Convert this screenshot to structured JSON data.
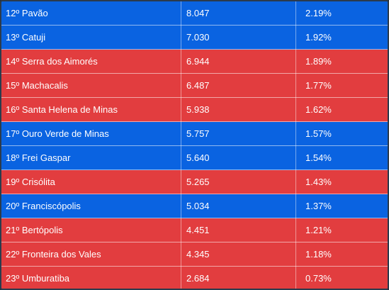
{
  "colors": {
    "blue": "#0a63e1",
    "red": "#e23d3f"
  },
  "rows": [
    {
      "rank": "12º",
      "name": "Pavão",
      "population": "8.047",
      "percent": "2.19%",
      "color": "blue"
    },
    {
      "rank": "13º",
      "name": "Catuji",
      "population": "7.030",
      "percent": "1.92%",
      "color": "blue"
    },
    {
      "rank": "14º",
      "name": "Serra dos Aimorés",
      "population": "6.944",
      "percent": "1.89%",
      "color": "red"
    },
    {
      "rank": "15º",
      "name": "Machacalis",
      "population": "6.487",
      "percent": "1.77%",
      "color": "red"
    },
    {
      "rank": "16º",
      "name": "Santa Helena de Minas",
      "population": "5.938",
      "percent": "1.62%",
      "color": "red"
    },
    {
      "rank": "17º",
      "name": "Ouro Verde de Minas",
      "population": "5.757",
      "percent": "1.57%",
      "color": "blue"
    },
    {
      "rank": "18º",
      "name": "Frei Gaspar",
      "population": "5.640",
      "percent": "1.54%",
      "color": "blue"
    },
    {
      "rank": "19º",
      "name": "Crisólita",
      "population": "5.265",
      "percent": "1.43%",
      "color": "red"
    },
    {
      "rank": "20º",
      "name": "Franciscópolis",
      "population": "5.034",
      "percent": "1.37%",
      "color": "blue"
    },
    {
      "rank": "21º",
      "name": "Bertópolis",
      "population": "4.451",
      "percent": "1.21%",
      "color": "red"
    },
    {
      "rank": "22º",
      "name": "Fronteira dos Vales",
      "population": "4.345",
      "percent": "1.18%",
      "color": "red"
    },
    {
      "rank": "23º",
      "name": "Umburatiba",
      "population": "2.684",
      "percent": "0.73%",
      "color": "red"
    }
  ]
}
